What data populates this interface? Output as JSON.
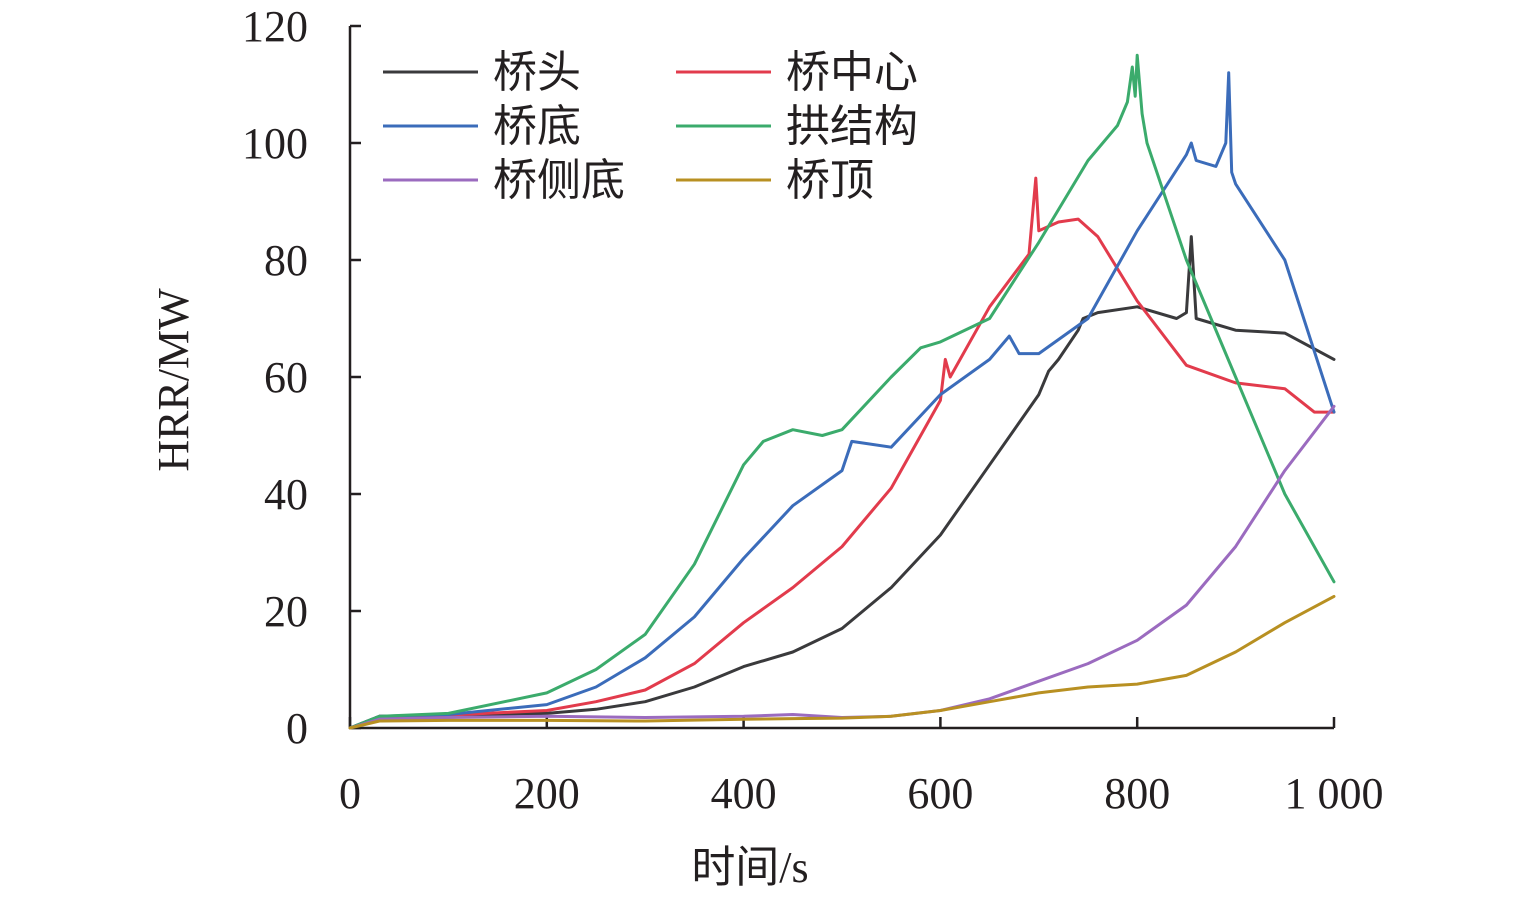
{
  "chart_data": {
    "type": "line",
    "xlabel": "时间/s",
    "ylabel": "HRR/MW",
    "xlim": [
      0,
      1000
    ],
    "ylim": [
      0,
      120
    ],
    "xticks": [
      {
        "value": 0,
        "label": "0"
      },
      {
        "value": 200,
        "label": "200"
      },
      {
        "value": 400,
        "label": "400"
      },
      {
        "value": 600,
        "label": "600"
      },
      {
        "value": 800,
        "label": "800"
      },
      {
        "value": 1000,
        "label": "1 000"
      }
    ],
    "yticks": [
      {
        "value": 0,
        "label": "0"
      },
      {
        "value": 20,
        "label": "20"
      },
      {
        "value": 40,
        "label": "40"
      },
      {
        "value": 60,
        "label": "60"
      },
      {
        "value": 80,
        "label": "80"
      },
      {
        "value": 100,
        "label": "100"
      },
      {
        "value": 120,
        "label": "120"
      }
    ],
    "grid": false,
    "legend_position": "top-left",
    "series": [
      {
        "name": "桥头",
        "color": "#3a3a3c",
        "x": [
          0,
          30,
          100,
          200,
          250,
          300,
          350,
          400,
          450,
          500,
          550,
          600,
          650,
          700,
          710,
          720,
          740,
          745,
          760,
          800,
          840,
          850,
          855,
          860,
          900,
          950,
          1000
        ],
        "y": [
          0,
          2,
          2.2,
          2.5,
          3.2,
          4.5,
          7,
          10.5,
          13,
          17,
          24,
          33,
          45,
          57,
          61,
          63,
          68,
          70,
          71,
          72,
          70,
          71,
          84,
          70,
          68,
          67.5,
          63
        ]
      },
      {
        "name": "桥中心",
        "color": "#e23b4c",
        "x": [
          0,
          30,
          100,
          200,
          250,
          300,
          350,
          400,
          450,
          500,
          550,
          600,
          605,
          610,
          650,
          690,
          697,
          700,
          720,
          740,
          760,
          800,
          850,
          900,
          950,
          980,
          1000
        ],
        "y": [
          0,
          2,
          2.2,
          3,
          4.5,
          6.5,
          11,
          18,
          24,
          31,
          41,
          56,
          63,
          60,
          72,
          81,
          94,
          85,
          86.5,
          87,
          84,
          73,
          62,
          59,
          58,
          54,
          54
        ]
      },
      {
        "name": "桥底",
        "color": "#3b6cba",
        "x": [
          0,
          30,
          100,
          200,
          250,
          300,
          350,
          400,
          450,
          500,
          510,
          550,
          600,
          650,
          670,
          680,
          700,
          750,
          800,
          850,
          855,
          860,
          880,
          890,
          893,
          896,
          900,
          950,
          1000
        ],
        "y": [
          0,
          2,
          2.3,
          4,
          7,
          12,
          19,
          29,
          38,
          44,
          49,
          48,
          57,
          63,
          67,
          64,
          64,
          70,
          85,
          98,
          100,
          97,
          96,
          100,
          112,
          95,
          93,
          80,
          54
        ]
      },
      {
        "name": "拱结构",
        "color": "#3bab6c",
        "x": [
          0,
          30,
          100,
          200,
          250,
          300,
          350,
          400,
          420,
          450,
          480,
          500,
          550,
          580,
          600,
          650,
          700,
          750,
          780,
          790,
          795,
          798,
          800,
          805,
          810,
          850,
          900,
          950,
          1000
        ],
        "y": [
          0,
          2,
          2.5,
          6,
          10,
          16,
          28,
          45,
          49,
          51,
          50,
          51,
          60,
          65,
          66,
          70,
          83,
          97,
          103,
          107,
          113,
          108,
          115,
          105,
          100,
          80,
          60,
          40,
          25
        ]
      },
      {
        "name": "桥侧底",
        "color": "#9b6bbf",
        "x": [
          0,
          30,
          100,
          200,
          300,
          400,
          450,
          500,
          550,
          600,
          650,
          700,
          750,
          800,
          850,
          900,
          950,
          1000
        ],
        "y": [
          0,
          1.5,
          1.8,
          2,
          1.8,
          2,
          2.3,
          1.8,
          2,
          3,
          5,
          8,
          11,
          15,
          21,
          31,
          44,
          55
        ]
      },
      {
        "name": "桥顶",
        "color": "#b89022",
        "x": [
          0,
          30,
          100,
          200,
          300,
          400,
          450,
          500,
          550,
          600,
          650,
          700,
          750,
          800,
          850,
          900,
          950,
          1000
        ],
        "y": [
          0,
          1.2,
          1.3,
          1.3,
          1.2,
          1.5,
          1.6,
          1.7,
          2,
          3,
          4.5,
          6,
          7,
          7.5,
          9,
          13,
          18,
          22.5
        ]
      }
    ]
  }
}
